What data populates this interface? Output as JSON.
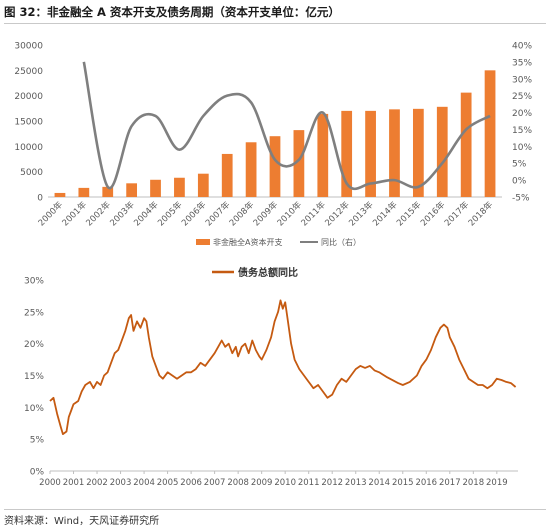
{
  "figure_title": "图 32：非金融全 A 资本开支及债务周期（资本开支单位：亿元）",
  "source_note": "资料来源：Wind，天风证券研究所",
  "colors": {
    "bar": "#ED7D31",
    "line_gray": "#7F7F7F",
    "line_orange": "#C55A11",
    "axis": "#bfbfbf",
    "text": "#595959"
  },
  "chart_data": [
    {
      "type": "bar",
      "categories": [
        "2000年",
        "2001年",
        "2002年",
        "2003年",
        "2004年",
        "2005年",
        "2006年",
        "2007年",
        "2008年",
        "2009年",
        "2010年",
        "2011年",
        "2012年",
        "2013年",
        "2014年",
        "2015年",
        "2016年",
        "2017年",
        "2018年"
      ],
      "series": [
        {
          "name": "非金融全A资本开支",
          "type": "bar",
          "axis": "left",
          "values": [
            800,
            1800,
            2000,
            2700,
            3400,
            3800,
            4600,
            8500,
            10800,
            12000,
            13200,
            16400,
            17000,
            17000,
            17300,
            17400,
            17800,
            20600,
            25000
          ]
        },
        {
          "name": "同比（右）",
          "type": "line",
          "axis": "right",
          "values": [
            null,
            35,
            -2,
            16,
            19,
            9,
            19,
            25,
            23,
            6,
            6,
            20,
            -1,
            -1,
            0,
            -2,
            5,
            15,
            19
          ]
        }
      ],
      "y_left": {
        "min": 0,
        "max": 30000,
        "ticks": [
          0,
          5000,
          10000,
          15000,
          20000,
          25000,
          30000
        ]
      },
      "y_right": {
        "min": -5,
        "max": 40,
        "ticks": [
          "-5%",
          "0%",
          "5%",
          "10%",
          "15%",
          "20%",
          "25%",
          "30%",
          "35%",
          "40%"
        ]
      },
      "legend": {
        "placement": "bottom",
        "bar_label": "非金融全A资本开支",
        "line_label": "同比（右）"
      }
    },
    {
      "type": "line",
      "series_name": "债务总额同比",
      "x_ticks": [
        "2000",
        "2001",
        "2002",
        "2003",
        "2004",
        "2005",
        "2006",
        "2007",
        "2008",
        "2009",
        "2010",
        "2011",
        "2012",
        "2013",
        "2014",
        "2015",
        "2016",
        "2017",
        "2018",
        "2019"
      ],
      "x_range": [
        2000,
        2019.9
      ],
      "y_ticks": [
        "0%",
        "5%",
        "10%",
        "15%",
        "20%",
        "25%",
        "30%"
      ],
      "y_range": [
        0,
        30
      ],
      "legend": {
        "placement": "top"
      },
      "points": [
        [
          2000.0,
          11.0
        ],
        [
          2000.15,
          11.5
        ],
        [
          2000.3,
          9.0
        ],
        [
          2000.45,
          7.0
        ],
        [
          2000.55,
          5.8
        ],
        [
          2000.7,
          6.2
        ],
        [
          2000.8,
          8.5
        ],
        [
          2000.9,
          9.5
        ],
        [
          2001.0,
          10.5
        ],
        [
          2001.2,
          11.0
        ],
        [
          2001.35,
          12.5
        ],
        [
          2001.5,
          13.5
        ],
        [
          2001.7,
          14.0
        ],
        [
          2001.85,
          13.0
        ],
        [
          2002.0,
          14.0
        ],
        [
          2002.15,
          13.5
        ],
        [
          2002.3,
          15.0
        ],
        [
          2002.45,
          15.5
        ],
        [
          2002.6,
          17.0
        ],
        [
          2002.75,
          18.5
        ],
        [
          2002.9,
          19.0
        ],
        [
          2003.0,
          20.0
        ],
        [
          2003.2,
          22.0
        ],
        [
          2003.35,
          24.0
        ],
        [
          2003.45,
          24.5
        ],
        [
          2003.55,
          22.0
        ],
        [
          2003.7,
          23.5
        ],
        [
          2003.85,
          22.5
        ],
        [
          2004.0,
          24.0
        ],
        [
          2004.1,
          23.5
        ],
        [
          2004.2,
          21.0
        ],
        [
          2004.35,
          18.0
        ],
        [
          2004.5,
          16.5
        ],
        [
          2004.65,
          15.0
        ],
        [
          2004.8,
          14.5
        ],
        [
          2005.0,
          15.5
        ],
        [
          2005.2,
          15.0
        ],
        [
          2005.4,
          14.5
        ],
        [
          2005.6,
          15.0
        ],
        [
          2005.8,
          15.5
        ],
        [
          2006.0,
          15.5
        ],
        [
          2006.2,
          16.0
        ],
        [
          2006.4,
          17.0
        ],
        [
          2006.6,
          16.5
        ],
        [
          2006.8,
          17.5
        ],
        [
          2007.0,
          18.5
        ],
        [
          2007.15,
          19.5
        ],
        [
          2007.3,
          20.5
        ],
        [
          2007.45,
          19.5
        ],
        [
          2007.6,
          20.0
        ],
        [
          2007.75,
          18.5
        ],
        [
          2007.9,
          19.5
        ],
        [
          2008.0,
          18.0
        ],
        [
          2008.15,
          19.5
        ],
        [
          2008.3,
          20.0
        ],
        [
          2008.45,
          18.5
        ],
        [
          2008.6,
          20.5
        ],
        [
          2008.75,
          19.0
        ],
        [
          2008.9,
          18.0
        ],
        [
          2009.0,
          17.5
        ],
        [
          2009.2,
          19.0
        ],
        [
          2009.4,
          21.0
        ],
        [
          2009.55,
          23.5
        ],
        [
          2009.7,
          25.0
        ],
        [
          2009.8,
          26.8
        ],
        [
          2009.9,
          25.5
        ],
        [
          2010.0,
          26.5
        ],
        [
          2010.1,
          24.0
        ],
        [
          2010.25,
          20.0
        ],
        [
          2010.4,
          17.5
        ],
        [
          2010.6,
          16.0
        ],
        [
          2010.8,
          15.0
        ],
        [
          2011.0,
          14.0
        ],
        [
          2011.2,
          13.0
        ],
        [
          2011.4,
          13.5
        ],
        [
          2011.6,
          12.5
        ],
        [
          2011.8,
          11.5
        ],
        [
          2012.0,
          12.0
        ],
        [
          2012.2,
          13.5
        ],
        [
          2012.4,
          14.5
        ],
        [
          2012.6,
          14.0
        ],
        [
          2012.8,
          15.0
        ],
        [
          2013.0,
          16.0
        ],
        [
          2013.2,
          16.5
        ],
        [
          2013.4,
          16.2
        ],
        [
          2013.6,
          16.5
        ],
        [
          2013.8,
          15.8
        ],
        [
          2014.0,
          15.5
        ],
        [
          2014.3,
          14.8
        ],
        [
          2014.6,
          14.2
        ],
        [
          2014.8,
          13.8
        ],
        [
          2015.0,
          13.5
        ],
        [
          2015.3,
          14.0
        ],
        [
          2015.6,
          15.0
        ],
        [
          2015.8,
          16.5
        ],
        [
          2016.0,
          17.5
        ],
        [
          2016.2,
          19.0
        ],
        [
          2016.4,
          21.0
        ],
        [
          2016.6,
          22.5
        ],
        [
          2016.75,
          23.0
        ],
        [
          2016.9,
          22.5
        ],
        [
          2017.0,
          21.0
        ],
        [
          2017.2,
          19.5
        ],
        [
          2017.4,
          17.5
        ],
        [
          2017.6,
          16.0
        ],
        [
          2017.8,
          14.5
        ],
        [
          2018.0,
          14.0
        ],
        [
          2018.2,
          13.5
        ],
        [
          2018.4,
          13.5
        ],
        [
          2018.6,
          13.0
        ],
        [
          2018.8,
          13.5
        ],
        [
          2019.0,
          14.5
        ],
        [
          2019.2,
          14.3
        ],
        [
          2019.4,
          14.0
        ],
        [
          2019.6,
          13.8
        ],
        [
          2019.8,
          13.2
        ]
      ]
    }
  ]
}
